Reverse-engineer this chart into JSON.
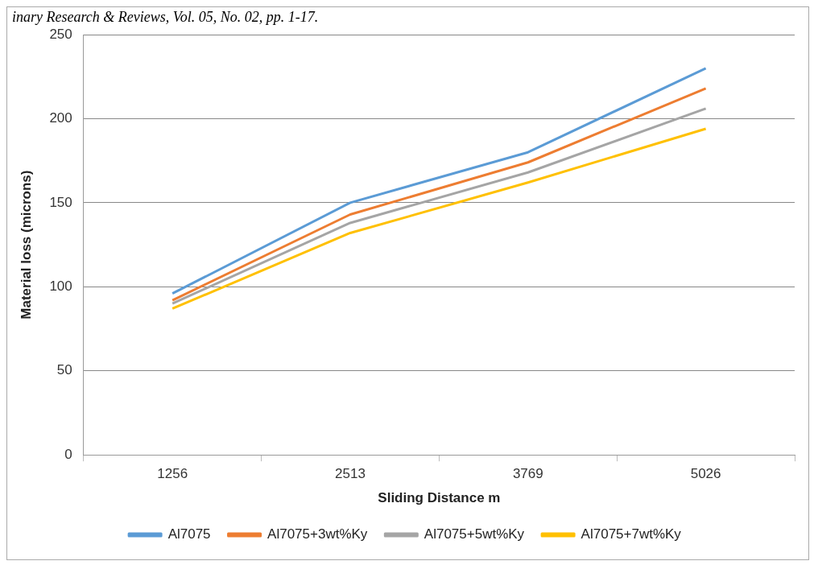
{
  "chart_data": {
    "type": "line",
    "ylabel": "Material loss (microns)",
    "xlabel": "Sliding Distance m",
    "annotations": [
      "inary Research & Reviews, Vol. 05, No. 02, pp. 1-17."
    ],
    "categories": [
      "1256",
      "2513",
      "3769",
      "5026"
    ],
    "series": [
      {
        "name": "Al7075",
        "color": "#5b9bd5",
        "values": [
          96,
          150,
          180,
          230
        ]
      },
      {
        "name": "Al7075+3wt%Ky",
        "color": "#ed7d31",
        "values": [
          92,
          143,
          174,
          218
        ]
      },
      {
        "name": "Al7075+5wt%Ky",
        "color": "#a5a5a5",
        "values": [
          90,
          138,
          168,
          206
        ]
      },
      {
        "name": "Al7075+7wt%Ky",
        "color": "#ffc000",
        "values": [
          87,
          132,
          162,
          194
        ]
      }
    ],
    "ylim": [
      0,
      250
    ],
    "yticks": [
      0,
      50,
      100,
      150,
      200,
      250
    ],
    "grid": "y",
    "legend": "bottom",
    "marker": "none",
    "line_style": "solid"
  }
}
